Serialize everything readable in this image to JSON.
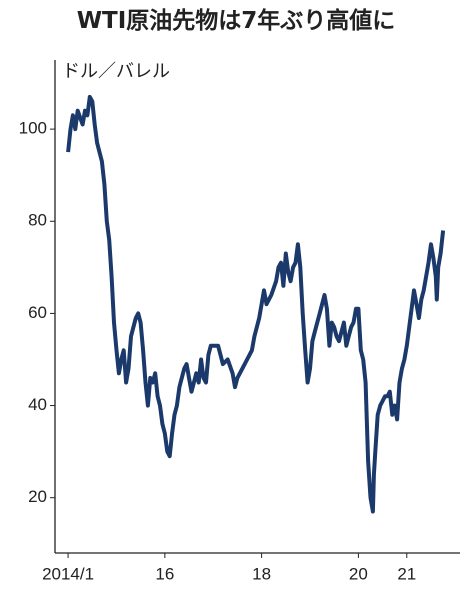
{
  "chart_data": {
    "type": "line",
    "title": "WTI原油先物は7年ぶり高値に",
    "y_label": "ドル／バレル",
    "xlim": [
      2013.73,
      2022.1
    ],
    "ylim": [
      8,
      115
    ],
    "xticks": [
      {
        "value": 2014,
        "label": "2014/1"
      },
      {
        "value": 2016,
        "label": "16"
      },
      {
        "value": 2018,
        "label": "18"
      },
      {
        "value": 2020,
        "label": "20"
      },
      {
        "value": 2021,
        "label": "21"
      }
    ],
    "yticks": [
      20,
      40,
      60,
      80,
      100
    ],
    "series": [
      {
        "name": "WTI",
        "color": "#1b3a6b",
        "x": [
          2014.0,
          2014.05,
          2014.1,
          2014.15,
          2014.2,
          2014.3,
          2014.35,
          2014.4,
          2014.45,
          2014.5,
          2014.55,
          2014.6,
          2014.65,
          2014.7,
          2014.75,
          2014.8,
          2014.85,
          2014.9,
          2014.95,
          2015.0,
          2015.05,
          2015.1,
          2015.15,
          2015.2,
          2015.25,
          2015.3,
          2015.4,
          2015.45,
          2015.5,
          2015.55,
          2015.6,
          2015.65,
          2015.7,
          2015.75,
          2015.8,
          2015.85,
          2015.9,
          2015.95,
          2016.0,
          2016.05,
          2016.1,
          2016.15,
          2016.2,
          2016.25,
          2016.3,
          2016.4,
          2016.45,
          2016.5,
          2016.55,
          2016.6,
          2016.65,
          2016.7,
          2016.75,
          2016.8,
          2016.85,
          2016.9,
          2016.95,
          2017.0,
          2017.1,
          2017.2,
          2017.3,
          2017.4,
          2017.45,
          2017.5,
          2017.6,
          2017.7,
          2017.8,
          2017.85,
          2017.9,
          2017.95,
          2018.0,
          2018.05,
          2018.1,
          2018.2,
          2018.3,
          2018.35,
          2018.4,
          2018.45,
          2018.5,
          2018.55,
          2018.6,
          2018.65,
          2018.7,
          2018.75,
          2018.8,
          2018.85,
          2018.9,
          2018.95,
          2019.0,
          2019.05,
          2019.1,
          2019.2,
          2019.3,
          2019.35,
          2019.4,
          2019.45,
          2019.5,
          2019.55,
          2019.6,
          2019.7,
          2019.75,
          2019.8,
          2019.85,
          2019.9,
          2019.95,
          2020.0,
          2020.05,
          2020.1,
          2020.15,
          2020.2,
          2020.25,
          2020.3,
          2020.32,
          2020.35,
          2020.4,
          2020.45,
          2020.5,
          2020.55,
          2020.6,
          2020.65,
          2020.7,
          2020.75,
          2020.8,
          2020.85,
          2020.9,
          2020.95,
          2021.0,
          2021.05,
          2021.1,
          2021.15,
          2021.2,
          2021.25,
          2021.3,
          2021.35,
          2021.4,
          2021.45,
          2021.5,
          2021.55,
          2021.6,
          2021.62,
          2021.65,
          2021.7,
          2021.75
        ],
        "values": [
          95,
          100,
          103,
          100,
          104,
          101,
          104,
          103,
          107,
          106,
          101,
          97,
          95,
          93,
          88,
          80,
          76,
          68,
          58,
          52,
          47,
          50,
          52,
          45,
          48,
          55,
          59,
          60,
          58,
          52,
          45,
          40,
          46,
          45,
          47,
          42,
          40,
          36,
          34,
          30,
          29,
          34,
          38,
          40,
          44,
          48,
          49,
          46,
          43,
          45,
          47,
          45,
          50,
          46,
          45,
          51,
          53,
          53,
          53,
          49,
          50,
          47,
          44,
          46,
          48,
          50,
          52,
          55,
          57,
          59,
          62,
          65,
          62,
          64,
          67,
          70,
          71,
          66,
          73,
          69,
          67,
          70,
          71,
          75,
          70,
          60,
          52,
          45,
          48,
          54,
          56,
          60,
          64,
          61,
          53,
          58,
          57,
          55,
          54,
          58,
          53,
          55,
          57,
          58,
          61,
          61,
          52,
          50,
          45,
          28,
          20,
          17,
          25,
          30,
          38,
          40,
          41,
          42,
          42,
          43,
          38,
          40,
          37,
          45,
          48,
          50,
          53,
          57,
          61,
          65,
          62,
          59,
          63,
          65,
          68,
          71,
          75,
          72,
          68,
          63,
          70,
          73,
          78
        ]
      }
    ]
  }
}
